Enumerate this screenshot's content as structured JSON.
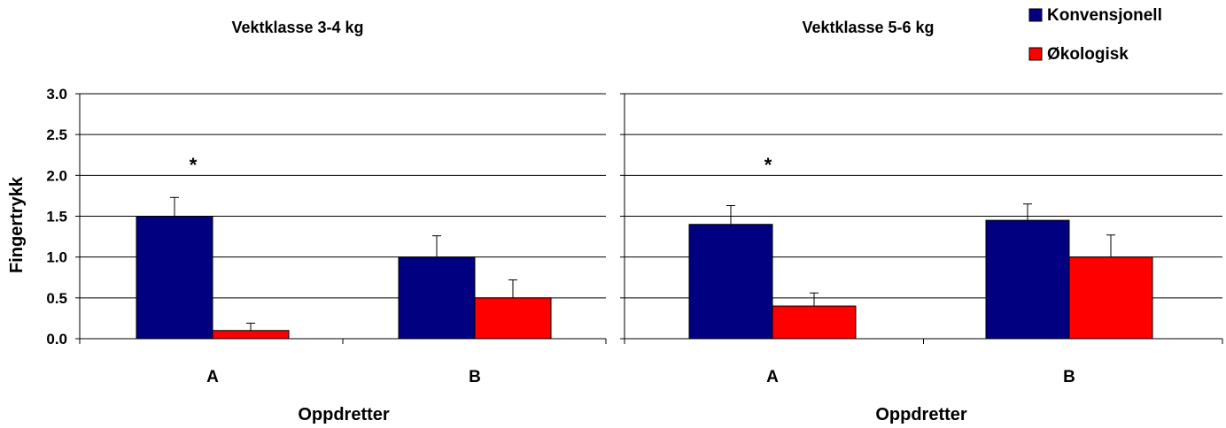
{
  "colors": {
    "konvensjonell": "#000080",
    "okologisk": "#ff0000",
    "axis": "#000000",
    "grid": "#000000"
  },
  "legend": {
    "placement": "top-right",
    "items": [
      {
        "label": "Konvensjonell",
        "color": "#000080"
      },
      {
        "label": "Økologisk",
        "color": "#ff0000"
      }
    ]
  },
  "chart_data": [
    {
      "type": "bar",
      "title": "Vektklasse 3-4 kg",
      "xlabel": "Oppdretter",
      "ylabel": "Fingertrykk",
      "ylim": [
        0,
        3
      ],
      "yticks": [
        "0.0",
        "0.5",
        "1.0",
        "1.5",
        "2.0",
        "2.5",
        "3.0"
      ],
      "grid": true,
      "categories": [
        "A",
        "B"
      ],
      "series": [
        {
          "name": "Konvensjonell",
          "values": [
            1.5,
            1.0
          ],
          "errors": [
            0.23,
            0.26
          ]
        },
        {
          "name": "Økologisk",
          "values": [
            0.1,
            0.5
          ],
          "errors": [
            0.09,
            0.22
          ]
        }
      ],
      "annotations": [
        {
          "text": "*",
          "category": "A"
        }
      ]
    },
    {
      "type": "bar",
      "title": "Vektklasse 5-6 kg",
      "xlabel": "Oppdretter",
      "ylabel": "",
      "ylim": [
        0,
        3
      ],
      "grid": true,
      "categories": [
        "A",
        "B"
      ],
      "series": [
        {
          "name": "Konvensjonell",
          "values": [
            1.4,
            1.45
          ],
          "errors": [
            0.23,
            0.2
          ]
        },
        {
          "name": "Økologisk",
          "values": [
            0.4,
            1.0
          ],
          "errors": [
            0.16,
            0.27
          ]
        }
      ],
      "annotations": [
        {
          "text": "*",
          "category": "A"
        }
      ]
    }
  ]
}
